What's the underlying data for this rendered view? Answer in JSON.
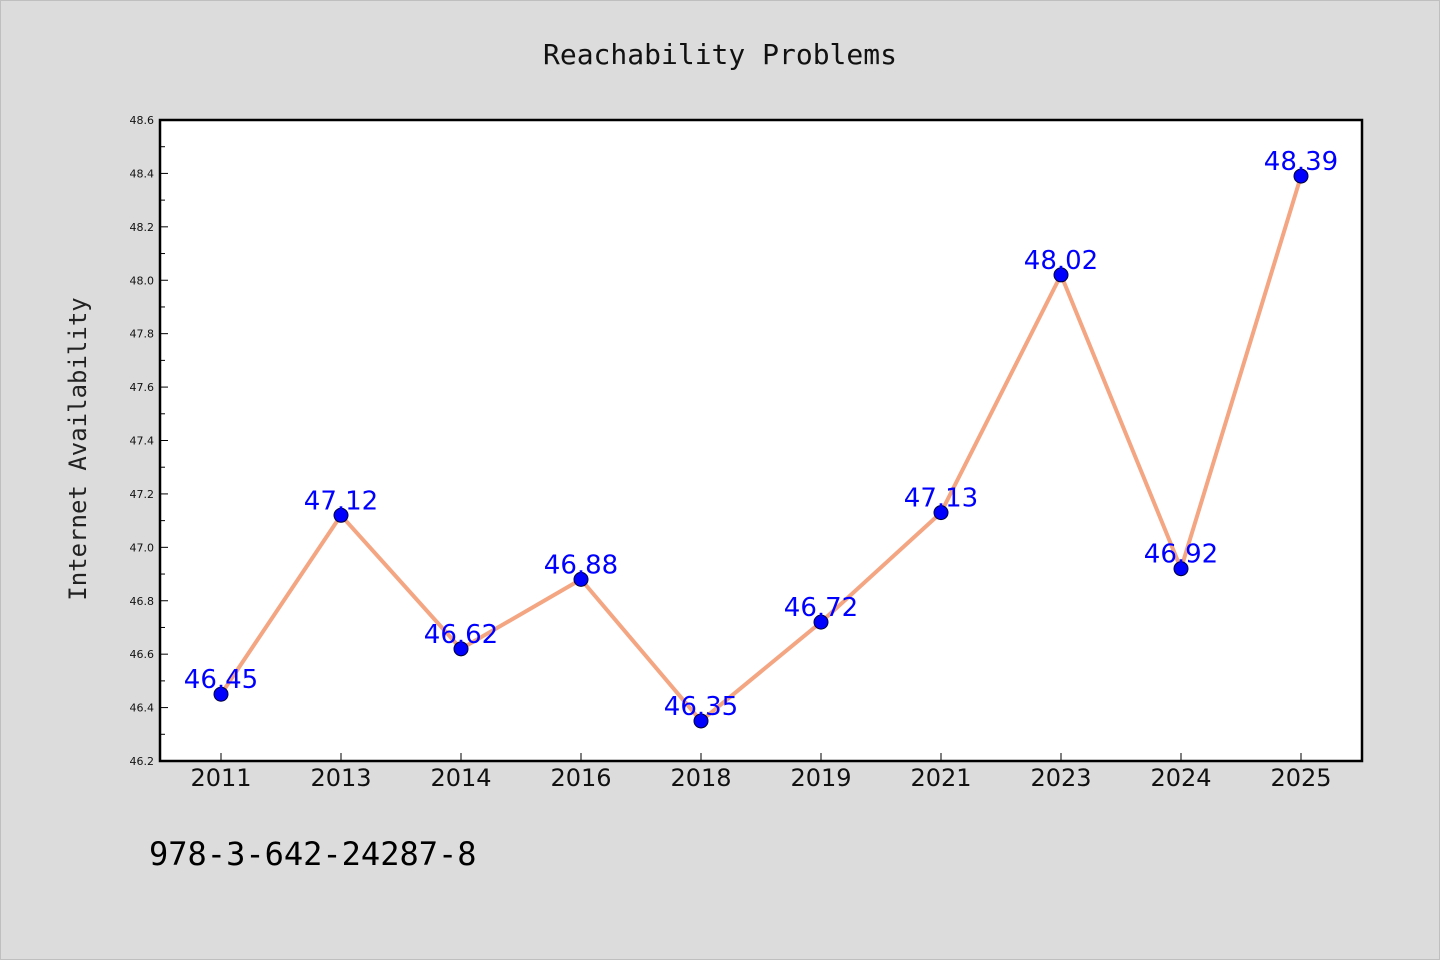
{
  "chart_data": {
    "type": "line",
    "title": "Reachability Problems",
    "xlabel": "",
    "ylabel": "Internet Availability",
    "categories": [
      "2011",
      "2013",
      "2014",
      "2016",
      "2018",
      "2019",
      "2021",
      "2023",
      "2024",
      "2025"
    ],
    "series": [
      {
        "values": [
          46.45,
          47.12,
          46.62,
          46.88,
          46.35,
          46.72,
          47.13,
          48.02,
          46.92,
          48.39
        ],
        "data_labels": [
          "46.45",
          "47.12",
          "46.62",
          "46.88",
          "46.35",
          "46.72",
          "47.13",
          "48.02",
          "46.92",
          "48.39"
        ],
        "line_color": "#f4a582",
        "marker_color": "#0000ff"
      }
    ],
    "ylim": [
      46.2,
      48.6
    ],
    "y_major_ticks": [
      "46.2",
      "46.4",
      "46.6",
      "46.8",
      "47.0",
      "47.2",
      "47.4",
      "47.6",
      "47.8",
      "48.0",
      "48.2",
      "48.4",
      "48.6"
    ],
    "grid": false,
    "legend": "none",
    "colors": {
      "background": "#dcdcdc",
      "plot_background": "#ffffff",
      "data_label": "#0000ff"
    }
  },
  "footer": {
    "text": "978-3-642-24287-8"
  }
}
